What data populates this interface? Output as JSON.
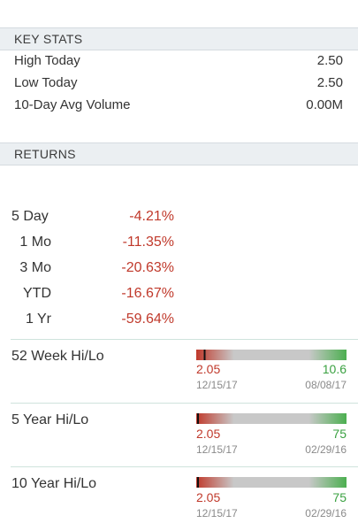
{
  "key_stats": {
    "header": "KEY STATS",
    "rows": [
      {
        "label": "High Today",
        "value": "2.50"
      },
      {
        "label": "Low Today",
        "value": "2.50"
      },
      {
        "label": "10-Day Avg Volume",
        "value": "0.00M"
      }
    ]
  },
  "returns": {
    "header": "RETURNS",
    "rows": [
      {
        "label": "5 Day",
        "value": "-4.21%"
      },
      {
        "label": "1 Mo",
        "value": "-11.35%"
      },
      {
        "label": "3 Mo",
        "value": "-20.63%"
      },
      {
        "label": "YTD",
        "value": "-16.67%"
      },
      {
        "label": "1 Yr",
        "value": "-59.64%"
      }
    ]
  },
  "hilo": [
    {
      "title": "52 Week Hi/Lo",
      "low": "2.05",
      "low_date": "12/15/17",
      "high": "10.6",
      "high_date": "08/08/17",
      "current_fraction": 0.05
    },
    {
      "title": "5 Year Hi/Lo",
      "low": "2.05",
      "low_date": "12/15/17",
      "high": "75",
      "high_date": "02/29/16",
      "current_fraction": 0.0
    },
    {
      "title": "10 Year Hi/Lo",
      "low": "2.05",
      "low_date": "12/15/17",
      "high": "75",
      "high_date": "02/29/16",
      "current_fraction": 0.0
    }
  ],
  "colors": {
    "negative": "#c0392b",
    "positive": "#3aa141",
    "bar_low": "#c0392b",
    "bar_mid": "#c8c8c8",
    "bar_high": "#4caf50"
  }
}
